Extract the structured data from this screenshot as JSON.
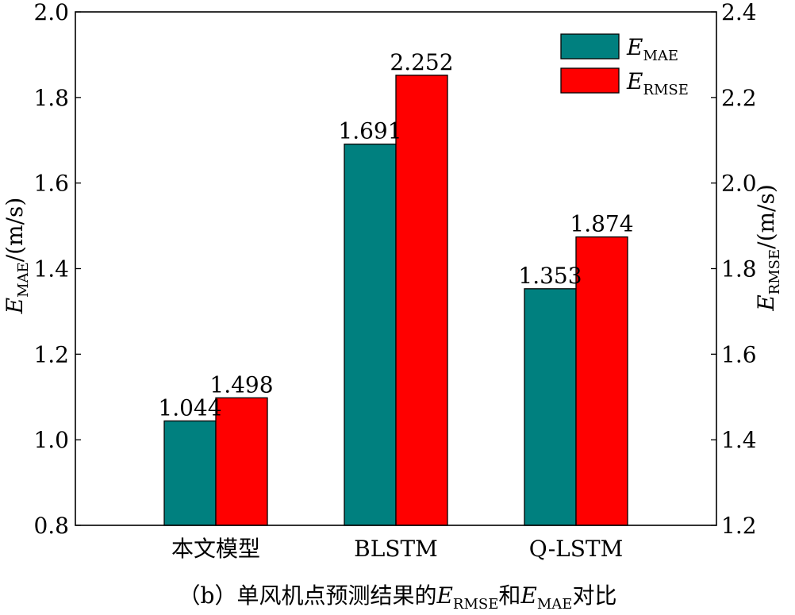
{
  "chart_data": {
    "type": "bar",
    "categories": [
      "本文模型",
      "BLSTM",
      "Q-LSTM"
    ],
    "series": [
      {
        "name": "E_MAE",
        "legend_main": "E",
        "legend_sub": "MAE",
        "axis": "left",
        "color": "#00807f",
        "values": [
          1.044,
          1.691,
          1.353
        ],
        "labels": [
          "1.044",
          "1.691",
          "1.353"
        ]
      },
      {
        "name": "E_RMSE",
        "legend_main": "E",
        "legend_sub": "RMSE",
        "axis": "right",
        "color": "#ff0000",
        "values": [
          1.498,
          2.252,
          1.874
        ],
        "labels": [
          "1.498",
          "2.252",
          "1.874"
        ]
      }
    ],
    "y_left": {
      "label_main": "E",
      "label_sub": "MAE",
      "label_unit": "/(m/s)",
      "ylim": [
        0.8,
        2.0
      ],
      "ticks": [
        "0.8",
        "1.0",
        "1.2",
        "1.4",
        "1.6",
        "1.8",
        "2.0"
      ]
    },
    "y_right": {
      "label_main": "E",
      "label_sub": "RMSE",
      "label_unit": "/(m/s)",
      "ylim": [
        1.2,
        2.4
      ],
      "ticks": [
        "1.2",
        "1.4",
        "1.6",
        "1.8",
        "2.0",
        "2.2",
        "2.4"
      ]
    },
    "legend_position": "top-right",
    "grid": false
  },
  "caption": {
    "prefix": "（b）单风机点预测结果的",
    "e1_main": "E",
    "e1_sub": "RMSE",
    "middle": "和",
    "e2_main": "E",
    "e2_sub": "MAE",
    "suffix": "对比"
  }
}
